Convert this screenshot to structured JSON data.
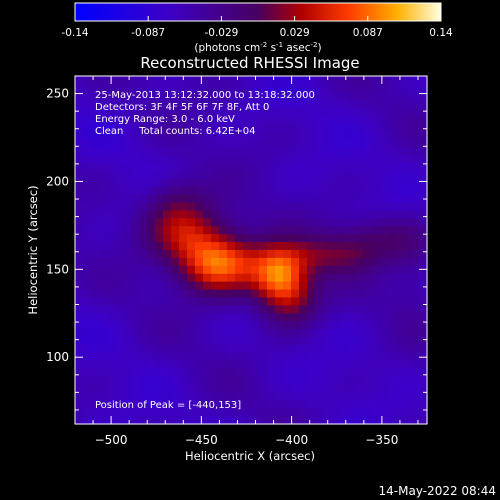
{
  "colorbar": {
    "ticks": [
      "-0.14",
      "-0.087",
      "-0.029",
      "0.029",
      "0.087",
      "0.14"
    ],
    "unit_prefix": "(photons cm",
    "unit_exp1": "-2",
    "unit_mid": " s",
    "unit_exp2": "-1",
    "unit_mid2": " asec",
    "unit_exp3": "-2",
    "unit_suffix": ")"
  },
  "footer": {
    "timestamp": "14-May-2022 08:44"
  },
  "chart_data": {
    "type": "heatmap",
    "title": "Reconstructed RHESSI Image",
    "xlabel": "Heliocentric X (arcsec)",
    "ylabel": "Heliocentric Y (arcsec)",
    "xlim": [
      -520,
      -325
    ],
    "ylim": [
      62,
      260
    ],
    "x_ticks": [
      -500,
      -450,
      -400,
      -350
    ],
    "y_ticks": [
      100,
      150,
      200,
      250
    ],
    "color_range": [
      -0.14,
      0.14
    ],
    "annotations": [
      "25-May-2013 13:12:32.000 to 13:18:32.000",
      "Detectors: 3F 4F 5F 6F 7F 8F, Att 0",
      "Energy Range: 3.0 - 6.0 keV",
      "Clean     Total counts: 6.42E+04"
    ],
    "peak_label": "Position of Peak = [-440,153]",
    "peak": [
      -440,
      153
    ],
    "sources": [
      {
        "x": -440,
        "y": 153,
        "sx": 16,
        "sy": 12,
        "amp": 0.14
      },
      {
        "x": -407,
        "y": 147,
        "sx": 11,
        "sy": 11,
        "amp": 0.125
      },
      {
        "x": -458,
        "y": 172,
        "sx": 16,
        "sy": 12,
        "amp": 0.09
      },
      {
        "x": -400,
        "y": 132,
        "sx": 12,
        "sy": 11,
        "amp": 0.07
      },
      {
        "x": -380,
        "y": 158,
        "sx": 22,
        "sy": 8,
        "amp": 0.055
      },
      {
        "x": -350,
        "y": 168,
        "sx": 20,
        "sy": 9,
        "amp": 0.045
      },
      {
        "x": -465,
        "y": 190,
        "sx": 12,
        "sy": 10,
        "amp": 0.04
      },
      {
        "x": -333,
        "y": 148,
        "sx": 8,
        "sy": 15,
        "amp": 0.02
      }
    ]
  }
}
